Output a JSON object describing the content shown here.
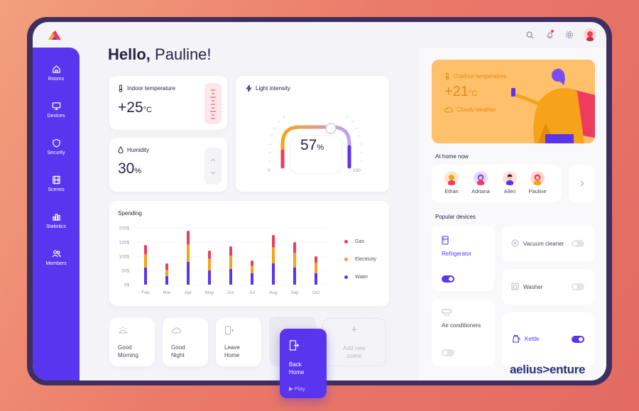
{
  "greeting": {
    "hello": "Hello,",
    "name": "Pauline!"
  },
  "sidebar": {
    "items": [
      {
        "label": "Rooms",
        "icon": "home-icon"
      },
      {
        "label": "Devices",
        "icon": "monitor-icon"
      },
      {
        "label": "Security",
        "icon": "shield-icon"
      },
      {
        "label": "Scenes",
        "icon": "film-icon"
      },
      {
        "label": "Statistics",
        "icon": "bar-chart-icon"
      },
      {
        "label": "Members",
        "icon": "users-icon"
      }
    ]
  },
  "indoor": {
    "label": "Indoor temperature",
    "value": "+25",
    "unit": "°C"
  },
  "humidity": {
    "label": "Humidity",
    "value": "30",
    "unit": "%"
  },
  "light": {
    "label": "Light intensity",
    "value": "57",
    "unit": "%",
    "min": "0",
    "max": "100",
    "level": 0.57
  },
  "spending": {
    "title": "Spending"
  },
  "chart_data": {
    "type": "bar",
    "title": "Spending",
    "categories": [
      "Feb",
      "Mar",
      "Apr",
      "May",
      "Jun",
      "Jul",
      "Aug",
      "Sep",
      "Oct"
    ],
    "yticks": [
      "200$",
      "150$",
      "100$",
      "50$",
      "0$"
    ],
    "ylim": [
      0,
      200
    ],
    "stacked": true,
    "series": [
      {
        "name": "Water",
        "color": "#5a35f0",
        "values": [
          60,
          30,
          80,
          50,
          55,
          40,
          75,
          60,
          40
        ]
      },
      {
        "name": "Electricity",
        "color": "#f7a21b",
        "values": [
          45,
          20,
          60,
          40,
          45,
          25,
          55,
          50,
          35
        ]
      },
      {
        "name": "Gas",
        "color": "#ef3b5d",
        "values": [
          35,
          25,
          50,
          30,
          35,
          20,
          45,
          40,
          25
        ]
      }
    ],
    "legend": [
      "Gas",
      "Electricity",
      "Water"
    ],
    "legend_position": "right"
  },
  "scenes": [
    {
      "line1": "Good",
      "line2": "Morning"
    },
    {
      "line1": "Good",
      "line2": "Night"
    },
    {
      "line1": "Leave",
      "line2": "Home"
    },
    {
      "line1": "Back",
      "line2": "Home",
      "action": "Play"
    },
    {
      "line1": "Add new",
      "line2": "scene"
    }
  ],
  "weather": {
    "label": "Outdoor temperature",
    "value": "+21",
    "unit": "°C",
    "condition": "Cloudy weather"
  },
  "at_home": {
    "title": "At home now",
    "people": [
      {
        "name": "Ethan",
        "color": "#f7a21b"
      },
      {
        "name": "Adriana",
        "color": "#7a4cf5"
      },
      {
        "name": "Allen",
        "color": "#5a35f0"
      },
      {
        "name": "Pauline",
        "color": "#ef3b5d"
      }
    ]
  },
  "devices": {
    "title": "Popular devices",
    "items": [
      {
        "name": "Refrigerator",
        "on": true
      },
      {
        "name": "Vacuum cleaner",
        "on": false
      },
      {
        "name": "Washer",
        "on": false
      },
      {
        "name": "Air conditioners",
        "on": false
      },
      {
        "name": "Kettle",
        "on": true
      }
    ]
  },
  "brand": "aelius>enture",
  "colors": {
    "accent": "#5a35f0",
    "orange": "#f7a21b",
    "red": "#ef3b5d",
    "weather_bg": "#fec06a"
  }
}
